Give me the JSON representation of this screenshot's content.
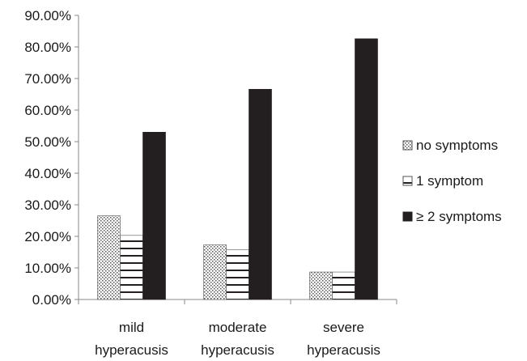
{
  "chart_data": {
    "type": "bar",
    "categories": [
      [
        "mild",
        "hyperacusis"
      ],
      [
        "moderate",
        "hyperacusis"
      ],
      [
        "severe",
        "hyperacusis"
      ]
    ],
    "series": [
      {
        "name": "no symptoms",
        "pattern": "dots",
        "values": [
          26.5,
          17.3,
          8.7
        ]
      },
      {
        "name": "1 symptom",
        "pattern": "horizontal-lines",
        "values": [
          20.3,
          15.8,
          8.7
        ]
      },
      {
        "name": "≥ 2 symptoms",
        "pattern": "solid",
        "values": [
          53.0,
          66.6,
          82.6
        ]
      }
    ],
    "yticks": [
      "0.00%",
      "10.00%",
      "20.00%",
      "30.00%",
      "40.00%",
      "50.00%",
      "60.00%",
      "70.00%",
      "80.00%",
      "90.00%"
    ],
    "ylim": [
      0,
      90
    ],
    "title": "",
    "xlabel": "",
    "ylabel": "",
    "legend_position": "right",
    "grid": false,
    "colors": {
      "bar_dark": "#231f20",
      "axis": "#888888",
      "text": "#1a1a1a"
    }
  }
}
